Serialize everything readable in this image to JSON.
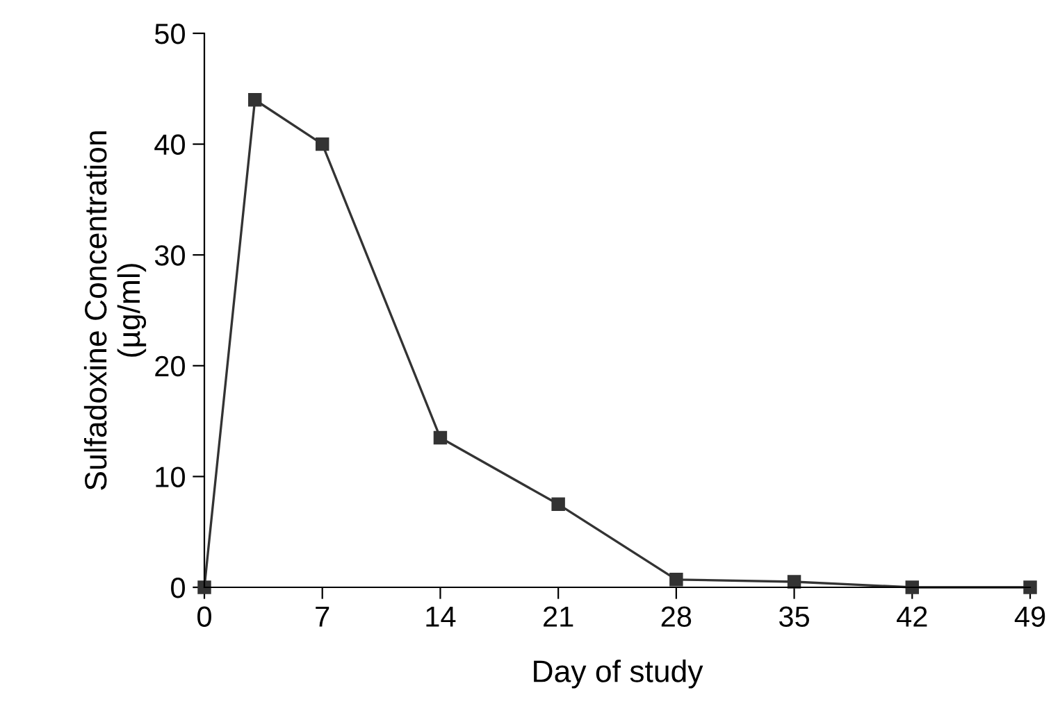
{
  "chart_data": {
    "type": "line",
    "xlabel": "Day of study",
    "ylabel": "Sulfadoxine Concentration\n(µg/ml)",
    "x": [
      0,
      3,
      7,
      14,
      21,
      28,
      35,
      42,
      49
    ],
    "series": [
      {
        "color": "#333333",
        "values": [
          0,
          44,
          40,
          13.5,
          7.5,
          0.7,
          0.5,
          0,
          0
        ]
      }
    ],
    "xlim": [
      0,
      49
    ],
    "xticks": [
      0,
      7,
      14,
      21,
      28,
      35,
      42,
      49
    ],
    "ylim": [
      0,
      50
    ],
    "yticks": [
      0,
      10,
      20,
      30,
      40,
      50
    ],
    "marker": "square",
    "line_style": "solid",
    "grid": false,
    "legend": false
  }
}
